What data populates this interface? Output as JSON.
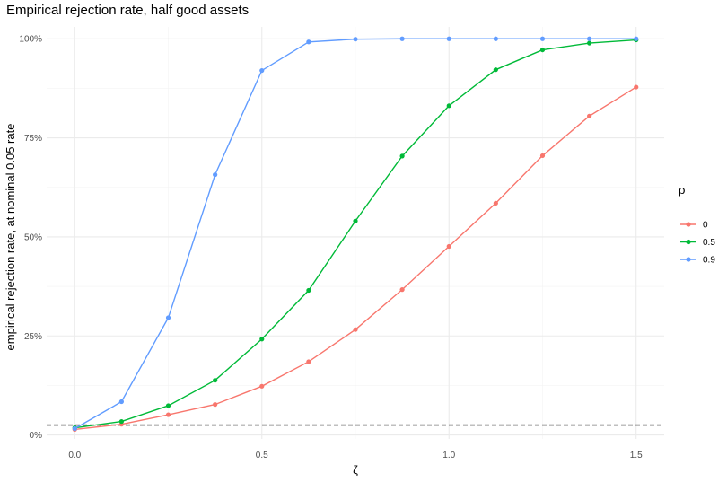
{
  "chart_data": {
    "type": "line",
    "title": "Empirical rejection rate, half good assets",
    "xlabel": "ζ",
    "ylabel": "empirical rejection rate, at nominal 0.05 rate",
    "xlim": [
      -0.075,
      1.575
    ],
    "ylim": [
      -0.01,
      1.03
    ],
    "x_ticks": [
      0.0,
      0.5,
      1.0,
      1.5
    ],
    "x_tick_labels": [
      "0.0",
      "0.5",
      "1.0",
      "1.5"
    ],
    "y_ticks": [
      0,
      0.25,
      0.5,
      0.75,
      1.0
    ],
    "y_tick_labels": [
      "0%",
      "25%",
      "50%",
      "75%",
      "100%"
    ],
    "grid": true,
    "legend": {
      "title": "ρ",
      "position": "right"
    },
    "reference_line": {
      "y": 0.025,
      "style": "dashed",
      "color": "#000000"
    },
    "x": [
      0,
      0.125,
      0.25,
      0.375,
      0.5,
      0.625,
      0.75,
      0.875,
      1.0,
      1.125,
      1.25,
      1.375,
      1.5
    ],
    "series": [
      {
        "name": "0",
        "color": "#F8766D",
        "values": [
          0.014,
          0.027,
          0.051,
          0.077,
          0.123,
          0.185,
          0.266,
          0.367,
          0.476,
          0.585,
          0.705,
          0.805,
          0.878
        ]
      },
      {
        "name": "0.5",
        "color": "#00BA38",
        "values": [
          0.018,
          0.034,
          0.074,
          0.138,
          0.242,
          0.365,
          0.54,
          0.704,
          0.831,
          0.922,
          0.972,
          0.989,
          0.997
        ]
      },
      {
        "name": "0.9",
        "color": "#619CFF",
        "values": [
          0.016,
          0.084,
          0.296,
          0.657,
          0.92,
          0.992,
          0.999,
          1.0,
          1.0,
          1.0,
          1.0,
          1.0,
          1.0
        ]
      }
    ]
  }
}
